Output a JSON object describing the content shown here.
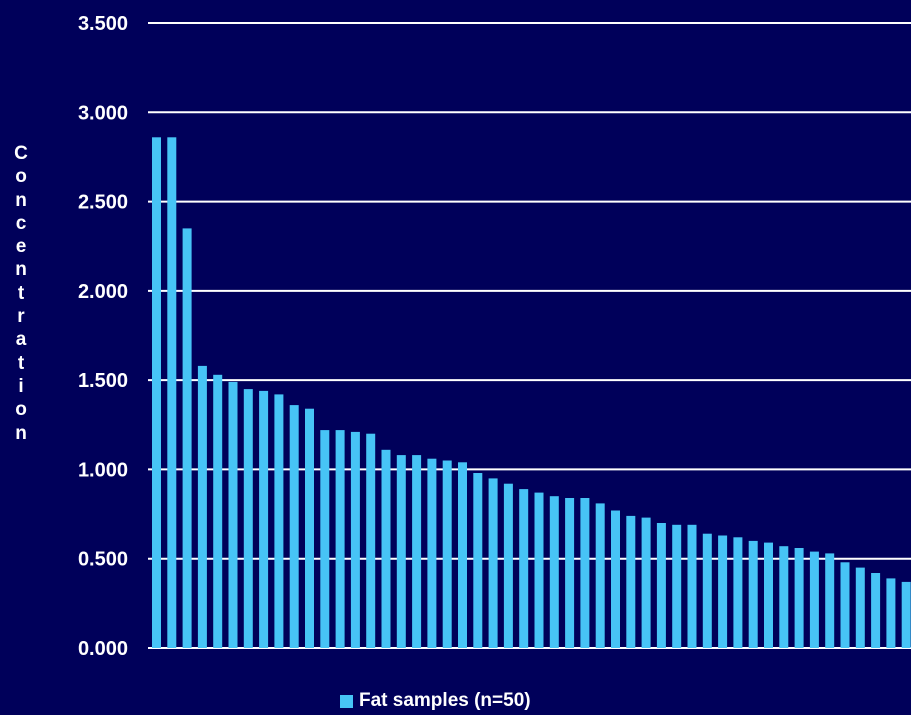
{
  "colors": {
    "background": "#00005a",
    "bar": "#47c4f6",
    "gridline": "#ffffff",
    "text": "#ffffff"
  },
  "chart_data": {
    "type": "bar",
    "title": "",
    "xlabel": "",
    "ylabel": "Concentration",
    "ylim": [
      0,
      3.5
    ],
    "yticks": [
      "0.000",
      "0.500",
      "1.000",
      "1.500",
      "2.000",
      "2.500",
      "3.000",
      "3.500"
    ],
    "grid": true,
    "legend_position": "bottom",
    "series": [
      {
        "name": "Fat samples (n=50)",
        "values": [
          2.86,
          2.86,
          2.35,
          1.58,
          1.53,
          1.49,
          1.45,
          1.44,
          1.42,
          1.36,
          1.34,
          1.22,
          1.22,
          1.21,
          1.2,
          1.11,
          1.08,
          1.08,
          1.06,
          1.05,
          1.04,
          0.98,
          0.95,
          0.92,
          0.89,
          0.87,
          0.85,
          0.84,
          0.84,
          0.81,
          0.77,
          0.74,
          0.73,
          0.7,
          0.69,
          0.69,
          0.64,
          0.63,
          0.62,
          0.6,
          0.59,
          0.57,
          0.56,
          0.54,
          0.53,
          0.48,
          0.45,
          0.42,
          0.39,
          0.37
        ]
      }
    ]
  }
}
